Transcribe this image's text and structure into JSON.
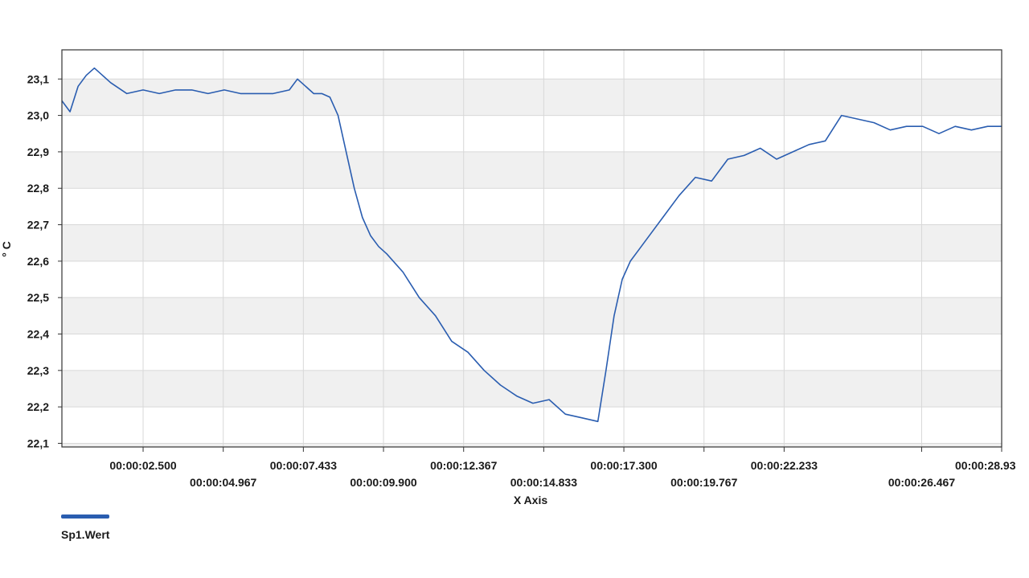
{
  "chart_data": {
    "type": "line",
    "xlabel": "X Axis",
    "ylabel": "° C",
    "x_ticks": [
      "00:00:02.500",
      "00:00:04.967",
      "00:00:07.433",
      "00:00:09.900",
      "00:00:12.367",
      "00:00:14.833",
      "00:00:17.300",
      "00:00:19.767",
      "00:00:22.233",
      "00:00:26.467",
      "00:00:28.93"
    ],
    "y_ticks": [
      "22,1",
      "22,2",
      "22,3",
      "22,4",
      "22,5",
      "22,6",
      "22,7",
      "22,8",
      "22,9",
      "23,0",
      "23,1"
    ],
    "xlim": [
      0.0,
      28.93
    ],
    "ylim": [
      22.09,
      23.18
    ],
    "grid": true,
    "legend_position": "bottom-left",
    "series": [
      {
        "name": "Sp1.Wert",
        "color": "#2a5db0",
        "x": [
          0.0,
          0.25,
          0.5,
          0.75,
          1.0,
          1.25,
          1.5,
          2.0,
          2.5,
          3.0,
          3.5,
          4.0,
          4.5,
          5.0,
          5.5,
          6.0,
          6.5,
          7.0,
          7.25,
          7.5,
          7.75,
          8.0,
          8.25,
          8.5,
          8.75,
          9.0,
          9.25,
          9.5,
          9.75,
          10.0,
          10.5,
          11.0,
          11.5,
          12.0,
          12.5,
          13.0,
          13.5,
          14.0,
          14.5,
          15.0,
          15.5,
          16.0,
          16.5,
          16.75,
          17.0,
          17.25,
          17.5,
          17.75,
          18.0,
          18.5,
          19.0,
          19.5,
          20.0,
          20.5,
          21.0,
          21.5,
          22.0,
          22.5,
          23.0,
          23.5,
          24.0,
          24.5,
          25.0,
          25.5,
          26.0,
          26.5,
          27.0,
          27.5,
          28.0,
          28.5,
          28.93
        ],
        "values": [
          23.04,
          23.01,
          23.08,
          23.11,
          23.13,
          23.11,
          23.09,
          23.06,
          23.07,
          23.06,
          23.07,
          23.07,
          23.06,
          23.07,
          23.06,
          23.06,
          23.06,
          23.07,
          23.1,
          23.08,
          23.06,
          23.06,
          23.05,
          23.0,
          22.9,
          22.8,
          22.72,
          22.67,
          22.64,
          22.62,
          22.57,
          22.5,
          22.45,
          22.38,
          22.35,
          22.3,
          22.26,
          22.23,
          22.21,
          22.22,
          22.18,
          22.17,
          22.16,
          22.3,
          22.45,
          22.55,
          22.6,
          22.63,
          22.66,
          22.72,
          22.78,
          22.83,
          22.82,
          22.88,
          22.89,
          22.91,
          22.88,
          22.9,
          22.92,
          22.93,
          23.0,
          22.99,
          22.98,
          22.96,
          22.97,
          22.97,
          22.95,
          22.97,
          22.96,
          22.97,
          22.97
        ]
      }
    ]
  }
}
